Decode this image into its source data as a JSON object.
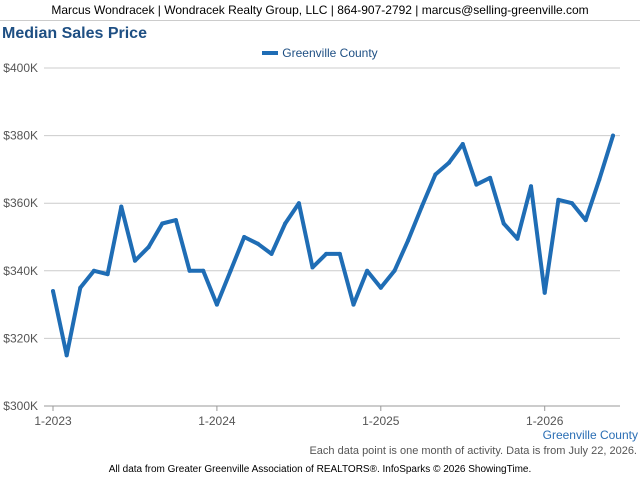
{
  "header": {
    "contact": "Marcus Wondracek | Wondracek Realty Group, LLC | 864-907-2792 | marcus@selling-greenville.com"
  },
  "footer": {
    "note": "Each data point is one month of activity. Data is from July 22, 2026.",
    "credit": "All data from Greater Greenville Association of REALTORS®. InfoSparks © 2026 ShowingTime."
  },
  "colors": {
    "series": "#1f6db5",
    "grid": "#cccccc",
    "title": "#1e4f83"
  },
  "chart_data": {
    "type": "line",
    "title": "Median Sales Price",
    "region_label": "Greenville County",
    "ylim": [
      300000,
      400000
    ],
    "y_ticks": [
      {
        "value": 300000,
        "label": "$300K"
      },
      {
        "value": 320000,
        "label": "$320K"
      },
      {
        "value": 340000,
        "label": "$340K"
      },
      {
        "value": 360000,
        "label": "$360K"
      },
      {
        "value": 380000,
        "label": "$380K"
      },
      {
        "value": 400000,
        "label": "$400K"
      }
    ],
    "x_ticks": [
      {
        "month": "2023-01",
        "label": "1-2023"
      },
      {
        "month": "2024-01",
        "label": "1-2024"
      },
      {
        "month": "2025-01",
        "label": "1-2025"
      },
      {
        "month": "2026-01",
        "label": "1-2026"
      }
    ],
    "x_range": [
      "2023-01",
      "2026-07"
    ],
    "grid": true,
    "legend_position": "top-center",
    "series": [
      {
        "name": "Greenville County",
        "points": [
          {
            "month": "2023-01",
            "value": 334000
          },
          {
            "month": "2023-02",
            "value": 315000
          },
          {
            "month": "2023-03",
            "value": 335000
          },
          {
            "month": "2023-04",
            "value": 340000
          },
          {
            "month": "2023-05",
            "value": 339000
          },
          {
            "month": "2023-06",
            "value": 359000
          },
          {
            "month": "2023-07",
            "value": 343000
          },
          {
            "month": "2023-08",
            "value": 347000
          },
          {
            "month": "2023-09",
            "value": 354000
          },
          {
            "month": "2023-10",
            "value": 355000
          },
          {
            "month": "2023-11",
            "value": 340000
          },
          {
            "month": "2023-12",
            "value": 340000
          },
          {
            "month": "2024-01",
            "value": 330000
          },
          {
            "month": "2024-02",
            "value": 340000
          },
          {
            "month": "2024-03",
            "value": 350000
          },
          {
            "month": "2024-04",
            "value": 348000
          },
          {
            "month": "2024-05",
            "value": 345000
          },
          {
            "month": "2024-06",
            "value": 354000
          },
          {
            "month": "2024-07",
            "value": 360000
          },
          {
            "month": "2024-08",
            "value": 341000
          },
          {
            "month": "2024-09",
            "value": 345000
          },
          {
            "month": "2024-10",
            "value": 345000
          },
          {
            "month": "2024-11",
            "value": 330000
          },
          {
            "month": "2024-12",
            "value": 340000
          },
          {
            "month": "2025-01",
            "value": 335000
          },
          {
            "month": "2025-02",
            "value": 340000
          },
          {
            "month": "2025-03",
            "value": 349000
          },
          {
            "month": "2025-04",
            "value": 359000
          },
          {
            "month": "2025-05",
            "value": 368500
          },
          {
            "month": "2025-06",
            "value": 372000
          },
          {
            "month": "2025-07",
            "value": 377500
          },
          {
            "month": "2025-08",
            "value": 365500
          },
          {
            "month": "2025-09",
            "value": 367500
          },
          {
            "month": "2025-10",
            "value": 354000
          },
          {
            "month": "2025-11",
            "value": 349500
          },
          {
            "month": "2025-12",
            "value": 365000
          },
          {
            "month": "2026-01",
            "value": 333500
          },
          {
            "month": "2026-02",
            "value": 361000
          },
          {
            "month": "2026-03",
            "value": 360000
          },
          {
            "month": "2026-04",
            "value": 355000
          },
          {
            "month": "2026-05",
            "value": 367000
          },
          {
            "month": "2026-06",
            "value": 380000
          }
        ]
      }
    ]
  }
}
